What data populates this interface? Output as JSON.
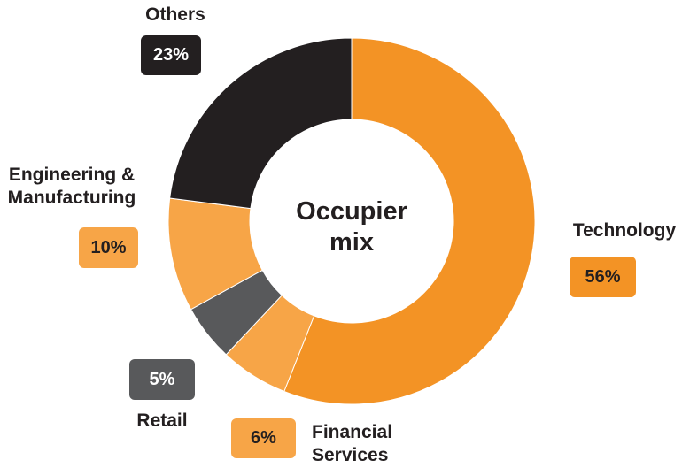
{
  "chart_data": {
    "type": "donut",
    "title": "Occupier mix",
    "categories": [
      "Technology",
      "Financial Services",
      "Retail",
      "Engineering & Manufacturing",
      "Others"
    ],
    "values": [
      56,
      6,
      5,
      10,
      23
    ],
    "value_labels": [
      "56%",
      "6%",
      "5%",
      "10%",
      "23%"
    ],
    "colors": [
      "#f39325",
      "#f7a547",
      "#58595b",
      "#f7a547",
      "#231f20"
    ]
  }
}
